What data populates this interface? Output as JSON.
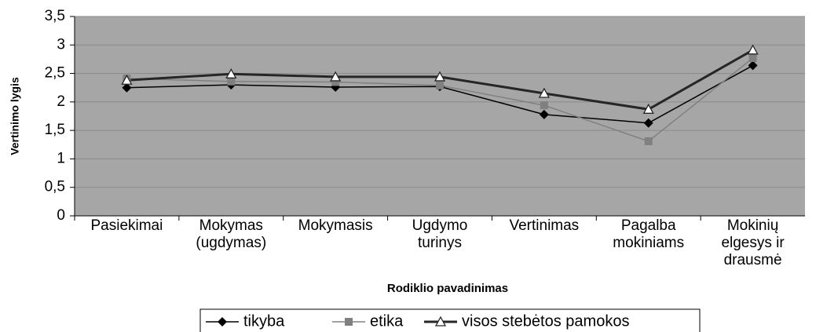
{
  "chart_data": {
    "type": "line",
    "x_label": "Rodiklio pavadinimas",
    "y_label": "Vertinimo lygis",
    "categories": [
      "Pasiekimai",
      "Mokymas (ugdymas)",
      "Mokymasis",
      "Ugdymo turinys",
      "Vertinimas",
      "Pagalba mokiniams",
      "Mokinių elgesys ir drausmė"
    ],
    "series": [
      {
        "name": "tikyba",
        "color": "#000000",
        "marker": "diamond",
        "values": [
          2.25,
          2.3,
          2.26,
          2.27,
          1.78,
          1.63,
          2.64
        ]
      },
      {
        "name": "etika",
        "color": "#808080",
        "marker": "square",
        "values": [
          2.41,
          2.36,
          2.35,
          2.29,
          1.94,
          1.31,
          2.77
        ]
      },
      {
        "name": "visos stebėtos pamokos",
        "color": "#262626",
        "marker": "triangle",
        "values": [
          2.38,
          2.49,
          2.44,
          2.44,
          2.15,
          1.87,
          2.91
        ]
      }
    ],
    "ylim": [
      0,
      3.5
    ],
    "yticks": [
      0,
      {
        "value": 0.5,
        "label": "0,5"
      },
      1,
      {
        "value": 1.5,
        "label": "1,5"
      },
      2,
      {
        "value": 2.5,
        "label": "2,5"
      },
      3,
      {
        "value": 3.5,
        "label": "3,5"
      }
    ],
    "grid": true,
    "legend": "bottom"
  }
}
